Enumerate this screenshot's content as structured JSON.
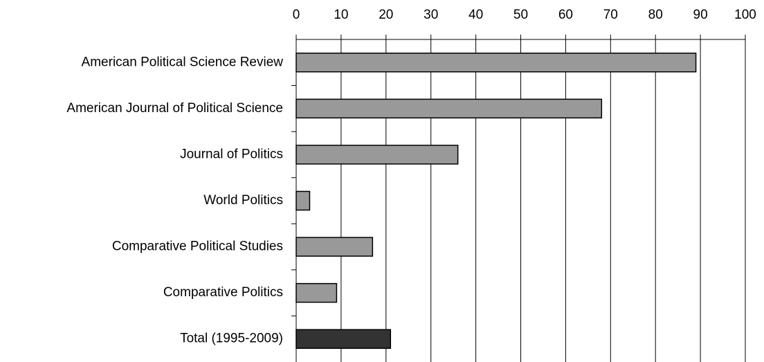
{
  "chart_data": {
    "type": "barh",
    "categories": [
      "American Political Science Review",
      "American Journal of Political Science",
      "Journal of Politics",
      "World Politics",
      "Comparative Political Studies",
      "Comparative Politics",
      "Total (1995-2009)"
    ],
    "values": [
      89,
      68,
      36,
      3,
      17,
      9,
      21
    ],
    "colors": [
      "#999999",
      "#999999",
      "#999999",
      "#999999",
      "#999999",
      "#999999",
      "#333333"
    ],
    "xlim": [
      0,
      100
    ],
    "xticks": [
      0,
      10,
      20,
      30,
      40,
      50,
      60,
      70,
      80,
      90,
      100
    ],
    "grid": true
  }
}
